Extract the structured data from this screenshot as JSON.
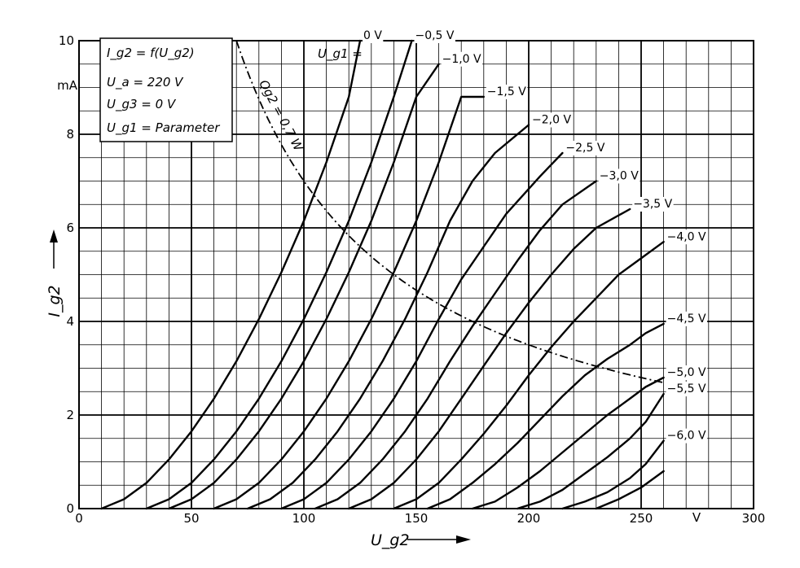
{
  "chart_data": {
    "type": "line",
    "xlabel": "U_g2",
    "ylabel": "I_g2",
    "xunit": "V",
    "yunit": "mA",
    "xlim": [
      0,
      300
    ],
    "ylim": [
      0,
      10
    ],
    "grid": true,
    "x_ticks": [
      {
        "value": 0,
        "label": "0"
      },
      {
        "value": 50,
        "label": "50"
      },
      {
        "value": 100,
        "label": "100"
      },
      {
        "value": 150,
        "label": "150"
      },
      {
        "value": 200,
        "label": "200"
      },
      {
        "value": 250,
        "label": "250"
      },
      {
        "value": 300,
        "label": "300"
      }
    ],
    "y_ticks": [
      {
        "value": 0,
        "label": "0"
      },
      {
        "value": 2,
        "label": "2"
      },
      {
        "value": 4,
        "label": "4"
      },
      {
        "value": 6,
        "label": "6"
      },
      {
        "value": 8,
        "label": "8"
      },
      {
        "value": 10,
        "label": "10"
      }
    ],
    "legend_box": {
      "lines": [
        "I_g2 = f(U_g2)",
        "U_a = 220 V",
        "U_g3 = 0 V",
        "U_g1 = Parameter"
      ],
      "placement": "top-left"
    },
    "parameter_symbol": "U_g1 =",
    "series": [
      {
        "name": "0 V",
        "x": [
          10,
          20,
          30,
          40,
          50,
          60,
          70,
          80,
          90,
          100,
          110,
          120,
          125
        ],
        "y": [
          0,
          0.2,
          0.55,
          1.05,
          1.65,
          2.35,
          3.15,
          4.05,
          5.05,
          6.15,
          7.4,
          8.8,
          10.0
        ]
      },
      {
        "name": "−0,5 V",
        "x": [
          30,
          40,
          50,
          60,
          70,
          80,
          90,
          100,
          110,
          120,
          130,
          140,
          148
        ],
        "y": [
          0,
          0.2,
          0.55,
          1.05,
          1.65,
          2.35,
          3.15,
          4.05,
          5.05,
          6.15,
          7.4,
          8.8,
          10.0
        ]
      },
      {
        "name": "−1,0 V",
        "x": [
          40,
          50,
          60,
          70,
          80,
          90,
          100,
          110,
          120,
          130,
          140,
          150,
          160
        ],
        "y": [
          0,
          0.2,
          0.55,
          1.05,
          1.65,
          2.35,
          3.15,
          4.05,
          5.05,
          6.15,
          7.4,
          8.8,
          9.5
        ]
      },
      {
        "name": "−1,5 V",
        "x": [
          60,
          70,
          80,
          90,
          100,
          110,
          120,
          130,
          140,
          150,
          160,
          170,
          180
        ],
        "y": [
          0,
          0.2,
          0.55,
          1.05,
          1.65,
          2.35,
          3.15,
          4.05,
          5.05,
          6.15,
          7.4,
          8.8,
          8.8
        ]
      },
      {
        "name": "−2,0 V",
        "x": [
          75,
          85,
          95,
          105,
          115,
          125,
          135,
          145,
          155,
          165,
          175,
          185,
          200
        ],
        "y": [
          0,
          0.2,
          0.55,
          1.05,
          1.65,
          2.35,
          3.15,
          4.05,
          5.05,
          6.15,
          7.0,
          7.6,
          8.2
        ]
      },
      {
        "name": "−2,5 V",
        "x": [
          90,
          100,
          110,
          120,
          130,
          140,
          150,
          160,
          170,
          180,
          190,
          205,
          215
        ],
        "y": [
          0,
          0.2,
          0.55,
          1.05,
          1.65,
          2.35,
          3.15,
          4.05,
          4.9,
          5.6,
          6.3,
          7.1,
          7.6
        ]
      },
      {
        "name": "−3,0 V",
        "x": [
          105,
          115,
          125,
          135,
          145,
          155,
          165,
          175,
          185,
          195,
          205,
          215,
          230
        ],
        "y": [
          0,
          0.2,
          0.55,
          1.05,
          1.65,
          2.35,
          3.15,
          3.9,
          4.6,
          5.3,
          5.95,
          6.5,
          7.0
        ]
      },
      {
        "name": "−3,5 V",
        "x": [
          120,
          130,
          140,
          150,
          160,
          170,
          180,
          190,
          200,
          210,
          220,
          230,
          245
        ],
        "y": [
          0,
          0.2,
          0.55,
          1.05,
          1.65,
          2.35,
          3.05,
          3.75,
          4.4,
          5.0,
          5.55,
          6.0,
          6.4
        ]
      },
      {
        "name": "−4,0 V",
        "x": [
          140,
          150,
          160,
          170,
          180,
          190,
          200,
          210,
          220,
          230,
          240,
          250,
          260
        ],
        "y": [
          0,
          0.2,
          0.55,
          1.05,
          1.6,
          2.2,
          2.85,
          3.45,
          4.0,
          4.5,
          5.0,
          5.35,
          5.7
        ]
      },
      {
        "name": "−4,5 V",
        "x": [
          155,
          165,
          175,
          185,
          195,
          205,
          215,
          225,
          235,
          245,
          252,
          260
        ],
        "y": [
          0,
          0.2,
          0.55,
          0.95,
          1.4,
          1.9,
          2.4,
          2.85,
          3.2,
          3.5,
          3.75,
          3.95
        ]
      },
      {
        "name": "−5,0 V",
        "x": [
          175,
          185,
          195,
          205,
          215,
          225,
          235,
          245,
          252,
          260
        ],
        "y": [
          0,
          0.15,
          0.45,
          0.8,
          1.2,
          1.6,
          2.0,
          2.35,
          2.6,
          2.8
        ]
      },
      {
        "name": "−5,5 V",
        "x": [
          195,
          205,
          215,
          225,
          235,
          245,
          252,
          260
        ],
        "y": [
          0,
          0.15,
          0.4,
          0.75,
          1.1,
          1.5,
          1.85,
          2.45
        ]
      },
      {
        "name": "−6,0 V",
        "x": [
          215,
          225,
          235,
          245,
          252,
          260
        ],
        "y": [
          0,
          0.15,
          0.35,
          0.65,
          0.95,
          1.45
        ]
      },
      {
        "name": "−6,0 V b",
        "x": [
          230,
          240,
          250,
          260
        ],
        "y": [
          0,
          0.2,
          0.45,
          0.8
        ]
      }
    ],
    "power_curve": {
      "name": "Qg2 = 0,7 W",
      "watts": 0.7,
      "x_range": [
        70,
        260
      ],
      "style": "dash-dot"
    }
  }
}
